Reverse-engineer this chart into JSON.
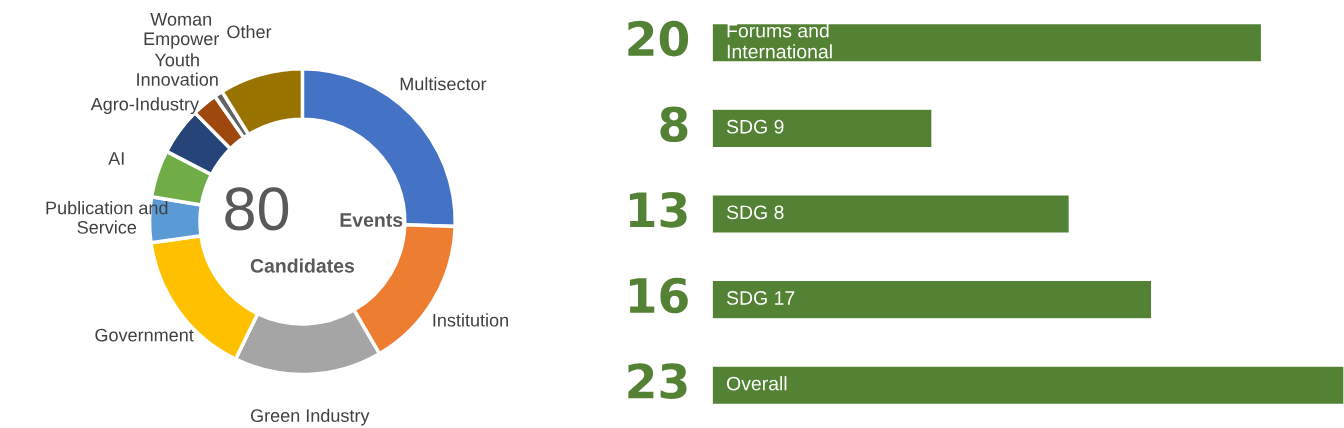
{
  "chart_data": [
    {
      "type": "donut",
      "categories": [
        "Multisector",
        "Institution",
        "Green Industry",
        "Government",
        "Publication and\nService",
        "AI",
        "Agro-Industry",
        "Youth\nInnovation",
        "Woman\nEmpower",
        "Other"
      ],
      "values": [
        25.5,
        16.1,
        15.6,
        15.6,
        4.8,
        5,
        5,
        2.7,
        0.9,
        8.8
      ],
      "colors": [
        "#4472c4",
        "#ed7d31",
        "#a5a5a5",
        "#ffc000",
        "#5b9bd5",
        "#70ad47",
        "#264478",
        "#9e480e",
        "#636363",
        "#997300"
      ],
      "annotations": [
        "80",
        "Events",
        "Candidates"
      ],
      "legend": false
    },
    {
      "type": "bar",
      "orientation": "horizontal",
      "categories": [
        "Forums and\nInternational",
        "SDG 9",
        "SDG 8",
        "SDG 17",
        "Overall"
      ],
      "values": [
        20,
        8,
        13,
        16,
        23
      ],
      "color": "#548235",
      "data_labels": true,
      "xlim": [
        0,
        23
      ]
    }
  ]
}
